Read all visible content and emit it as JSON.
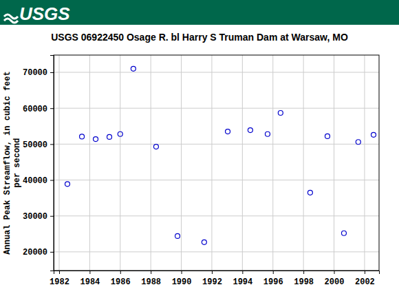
{
  "header": {
    "logo": "USGS"
  },
  "chart_data": {
    "type": "scatter",
    "title": "USGS 06922450 Osage R. bl Harry S Truman Dam at Warsaw, MO",
    "ylabel": [
      "Annual Peak Streamflow, in cubic feet",
      "per second"
    ],
    "x": [
      1982.54,
      1983.49,
      1984.39,
      1985.29,
      1986.0,
      1986.86,
      1988.35,
      1989.75,
      1991.5,
      1993.04,
      1994.52,
      1995.65,
      1996.5,
      1998.44,
      1999.57,
      2000.65,
      2001.59,
      2002.59
    ],
    "values": [
      38900,
      52100,
      51400,
      52000,
      52800,
      71000,
      49300,
      24400,
      22700,
      53500,
      53900,
      52800,
      58700,
      36500,
      52200,
      25200,
      50600,
      52600
    ],
    "color": "#0000cc",
    "marker": "open-circle",
    "xlim": [
      1981.64,
      2002.95
    ],
    "ylim": [
      14800,
      74800
    ],
    "xticks": [
      1982,
      1984,
      1986,
      1988,
      1990,
      1992,
      1994,
      1996,
      1998,
      2000,
      2002
    ],
    "yticks": [
      20000,
      30000,
      40000,
      50000,
      60000,
      70000
    ],
    "grid": true
  }
}
